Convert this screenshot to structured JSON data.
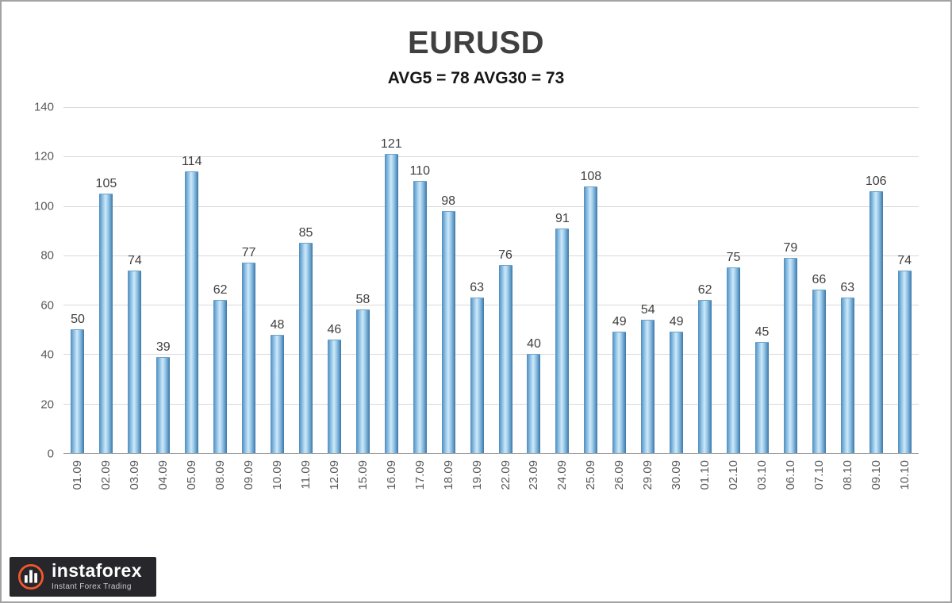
{
  "chart_data": {
    "type": "bar",
    "title": "EURUSD",
    "subtitle": "AVG5 = 78 AVG30 = 73",
    "categories": [
      "01.09",
      "02.09",
      "03.09",
      "04.09",
      "05.09",
      "08.09",
      "09.09",
      "10.09",
      "11.09",
      "12.09",
      "15.09",
      "16.09",
      "17.09",
      "18.09",
      "19.09",
      "22.09",
      "23.09",
      "24.09",
      "25.09",
      "26.09",
      "29.09",
      "30.09",
      "01.10",
      "02.10",
      "03.10",
      "06.10",
      "07.10",
      "08.10",
      "09.10",
      "10.10"
    ],
    "values": [
      50,
      105,
      74,
      39,
      114,
      62,
      77,
      48,
      85,
      46,
      58,
      121,
      110,
      98,
      63,
      76,
      40,
      91,
      108,
      49,
      54,
      49,
      62,
      75,
      45,
      79,
      66,
      63,
      106,
      74
    ],
    "ylim": [
      0,
      140
    ],
    "yticks": [
      0,
      20,
      40,
      60,
      80,
      100,
      120,
      140
    ],
    "grid": true,
    "legend": "none",
    "bar_color": "#5b9bd5",
    "label_color": "#3f3f3f",
    "gridline_color": "#d9d9d9"
  },
  "branding": {
    "logo_text": "instaforex",
    "logo_tagline": "Instant Forex Trading",
    "logo_accent_color": "#f2572d"
  }
}
